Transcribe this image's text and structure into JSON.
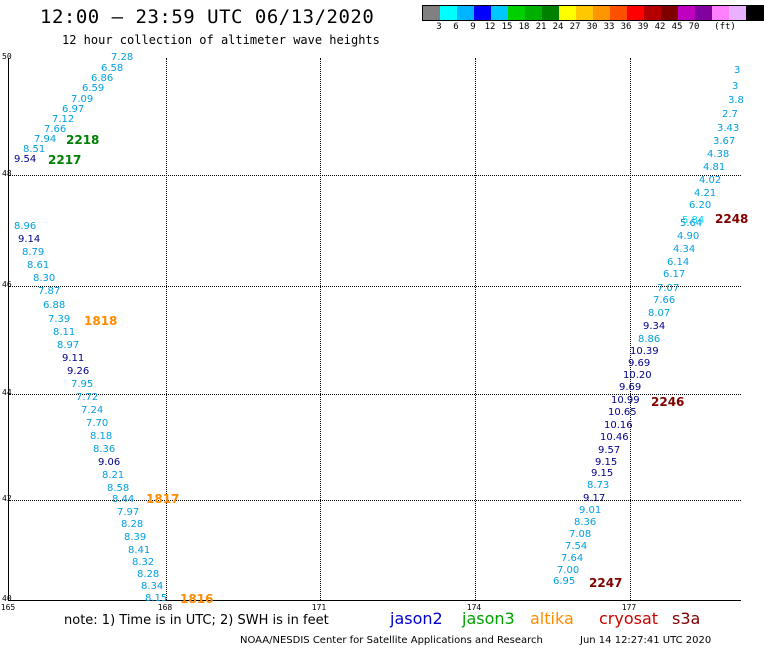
{
  "header": {
    "title": "12:00 – 23:59 UTC 06/13/2020",
    "subtitle": "12 hour collection of altimeter wave heights"
  },
  "colorbar": {
    "unit": "(ft)",
    "swatches": [
      "#808080",
      "#00ffff",
      "#00b4ff",
      "#0000ff",
      "#00c8ff",
      "#00d000",
      "#00b000",
      "#008000",
      "#ffff00",
      "#ffc800",
      "#ff9600",
      "#ff5000",
      "#ff0000",
      "#b40000",
      "#800000",
      "#c000c0",
      "#8000a0",
      "#ff80ff",
      "#e8b0ff",
      "#000000"
    ],
    "labels": [
      "3",
      "6",
      "9",
      "12",
      "15",
      "18",
      "21",
      "24",
      "27",
      "30",
      "33",
      "36",
      "39",
      "42",
      "45",
      "70"
    ]
  },
  "axes": {
    "lat_labels": [
      "50",
      "48",
      "46",
      "44",
      "42",
      "40"
    ],
    "lon_labels": [
      "165",
      "168",
      "171",
      "174",
      "177"
    ]
  },
  "satellite_colors": {
    "jason2": "#0000cc",
    "jason3": "#00a000",
    "altika": "#ff8c00",
    "cryosat": "#cc0000",
    "s3a": "#800000",
    "light": "#00a0e0",
    "dark": "#00008b",
    "cyan": "#00d8f0"
  },
  "left_track": [
    {
      "v": "7.28",
      "c": "light"
    },
    {
      "v": "6.58",
      "c": "light"
    },
    {
      "v": "6.86",
      "c": "light"
    },
    {
      "v": "6.59",
      "c": "light"
    },
    {
      "v": "7.09",
      "c": "light"
    },
    {
      "v": "6.97",
      "c": "light"
    },
    {
      "v": "7.12",
      "c": "light"
    },
    {
      "v": "7.66",
      "c": "light"
    },
    {
      "v": "7.94",
      "c": "light"
    },
    {
      "v": "8.51",
      "c": "light"
    },
    {
      "v": "9.54",
      "c": "dark"
    },
    {
      "v": "8.96",
      "c": "light"
    },
    {
      "v": "9.14",
      "c": "dark"
    },
    {
      "v": "8.79",
      "c": "light"
    },
    {
      "v": "8.61",
      "c": "light"
    },
    {
      "v": "8.30",
      "c": "light"
    },
    {
      "v": "7.87",
      "c": "light"
    },
    {
      "v": "6.88",
      "c": "light"
    },
    {
      "v": "7.39",
      "c": "light"
    },
    {
      "v": "8.11",
      "c": "light"
    },
    {
      "v": "8.97",
      "c": "light"
    },
    {
      "v": "9.11",
      "c": "dark"
    },
    {
      "v": "9.26",
      "c": "dark"
    },
    {
      "v": "7.95",
      "c": "light"
    },
    {
      "v": "7.72",
      "c": "light"
    },
    {
      "v": "7.24",
      "c": "light"
    },
    {
      "v": "7.70",
      "c": "light"
    },
    {
      "v": "8.18",
      "c": "light"
    },
    {
      "v": "8.36",
      "c": "light"
    },
    {
      "v": "9.06",
      "c": "dark"
    },
    {
      "v": "8.21",
      "c": "light"
    },
    {
      "v": "8.58",
      "c": "light"
    },
    {
      "v": "8.44",
      "c": "light"
    },
    {
      "v": "7.97",
      "c": "light"
    },
    {
      "v": "8.28",
      "c": "light"
    },
    {
      "v": "8.39",
      "c": "light"
    },
    {
      "v": "8.41",
      "c": "light"
    },
    {
      "v": "8.32",
      "c": "light"
    },
    {
      "v": "8.28",
      "c": "light"
    },
    {
      "v": "8.34",
      "c": "light"
    },
    {
      "v": "8.15",
      "c": "light"
    }
  ],
  "right_track": [
    {
      "v": "3",
      "c": "light"
    },
    {
      "v": "3",
      "c": "light"
    },
    {
      "v": "3.8",
      "c": "light"
    },
    {
      "v": "2.7",
      "c": "light"
    },
    {
      "v": "3.43",
      "c": "light"
    },
    {
      "v": "3.67",
      "c": "light"
    },
    {
      "v": "4.38",
      "c": "light"
    },
    {
      "v": "4.81",
      "c": "light"
    },
    {
      "v": "4.02",
      "c": "light"
    },
    {
      "v": "4.21",
      "c": "light"
    },
    {
      "v": "6.20",
      "c": "light"
    },
    {
      "v": "5.84",
      "c": "cyan"
    },
    {
      "v": "5.64",
      "c": "light"
    },
    {
      "v": "4.90",
      "c": "light"
    },
    {
      "v": "4.34",
      "c": "light"
    },
    {
      "v": "6.14",
      "c": "light"
    },
    {
      "v": "6.17",
      "c": "light"
    },
    {
      "v": "7.07",
      "c": "light"
    },
    {
      "v": "7.66",
      "c": "light"
    },
    {
      "v": "8.07",
      "c": "light"
    },
    {
      "v": "9.34",
      "c": "dark"
    },
    {
      "v": "8.86",
      "c": "light"
    },
    {
      "v": "10.39",
      "c": "dark"
    },
    {
      "v": "9.69",
      "c": "dark"
    },
    {
      "v": "10.20",
      "c": "dark"
    },
    {
      "v": "9.69",
      "c": "dark"
    },
    {
      "v": "10.99",
      "c": "dark"
    },
    {
      "v": "10.65",
      "c": "dark"
    },
    {
      "v": "10.16",
      "c": "dark"
    },
    {
      "v": "10.46",
      "c": "dark"
    },
    {
      "v": "9.57",
      "c": "dark"
    },
    {
      "v": "9.15",
      "c": "dark"
    },
    {
      "v": "9.15",
      "c": "dark"
    },
    {
      "v": "8.73",
      "c": "light"
    },
    {
      "v": "9.17",
      "c": "dark"
    },
    {
      "v": "9.01",
      "c": "light"
    },
    {
      "v": "8.36",
      "c": "light"
    },
    {
      "v": "7.08",
      "c": "light"
    },
    {
      "v": "7.54",
      "c": "light"
    },
    {
      "v": "7.64",
      "c": "light"
    },
    {
      "v": "7.00",
      "c": "light"
    },
    {
      "v": "6.95",
      "c": "light"
    }
  ],
  "time_labels": [
    {
      "t": "2218",
      "c": "#008000"
    },
    {
      "t": "2217",
      "c": "#008000"
    },
    {
      "t": "1818",
      "c": "#ff8c00"
    },
    {
      "t": "1817",
      "c": "#ff8c00"
    },
    {
      "t": "1816",
      "c": "#ff8c00"
    },
    {
      "t": "2248",
      "c": "#800000"
    },
    {
      "t": "2246",
      "c": "#800000"
    },
    {
      "t": "2247",
      "c": "#800000"
    }
  ],
  "footer": {
    "note": "note: 1) Time is in UTC; 2) SWH is in feet",
    "legend": [
      "jason2",
      "jason3",
      "altika",
      "cryosat",
      "s3a"
    ],
    "credit": "NOAA/NESDIS Center for Satellite Applications and Research",
    "timestamp": "Jun 14 12:27:41 UTC 2020"
  }
}
